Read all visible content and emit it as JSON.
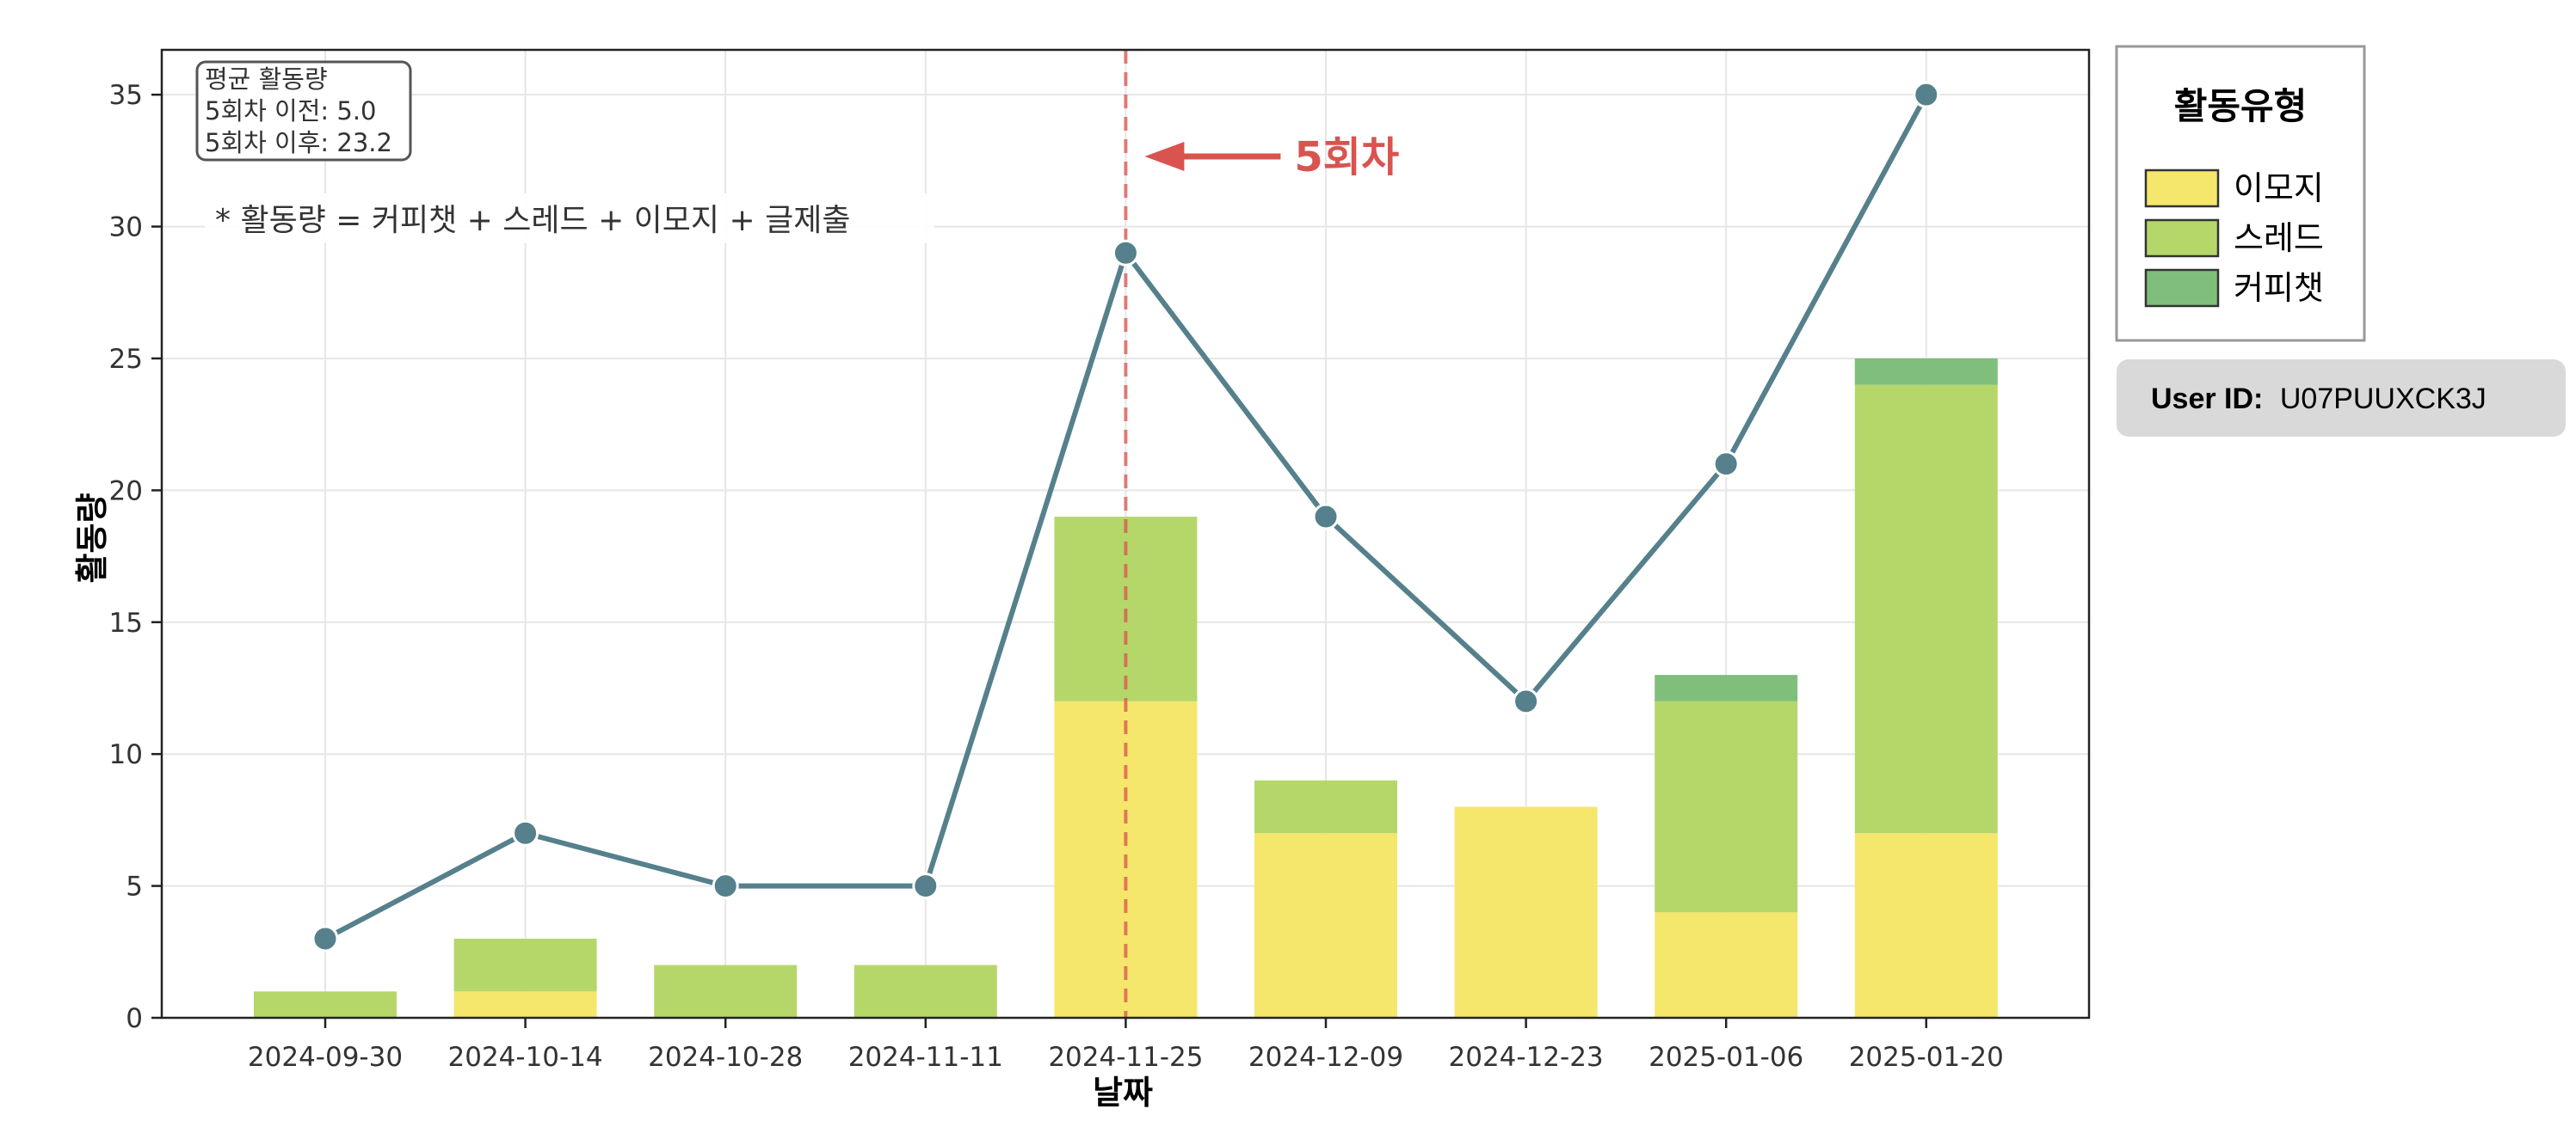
{
  "chart_data": {
    "type": "bar",
    "categories": [
      "2024-09-30",
      "2024-10-14",
      "2024-10-28",
      "2024-11-11",
      "2024-11-25",
      "2024-12-09",
      "2024-12-23",
      "2025-01-06",
      "2025-01-20"
    ],
    "series": [
      {
        "name": "이모지",
        "color": "#f5e66c",
        "values": [
          0,
          1,
          0,
          0,
          12,
          7,
          8,
          4,
          7
        ]
      },
      {
        "name": "스레드",
        "color": "#b5d76a",
        "values": [
          1,
          2,
          2,
          2,
          7,
          2,
          0,
          8,
          17
        ]
      },
      {
        "name": "커피챗",
        "color": "#7fbf7b",
        "values": [
          0,
          0,
          0,
          0,
          0,
          0,
          0,
          1,
          1
        ]
      }
    ],
    "line": {
      "color": "#55808c",
      "values": [
        3,
        7,
        5,
        5,
        29,
        19,
        12,
        21,
        35
      ]
    },
    "xlabel": "날짜",
    "ylabel": "활동량",
    "ylim": [
      0,
      36.7
    ],
    "yticks": [
      0,
      5,
      10,
      15,
      20,
      25,
      30,
      35
    ],
    "grid": true,
    "legend": {
      "title": "활동유형",
      "placement": "outside-right"
    },
    "marker": {
      "category": "2024-11-25",
      "label": "5회차",
      "color": "#d9534f"
    },
    "note": "* 활동량 = 커피챗 + 스레드 + 이모지 + 글제출",
    "stats": {
      "title": "평균 활동량",
      "before": "5회차 이전: 5.0",
      "after": "5회차 이후: 23.2"
    },
    "user_id": {
      "label": "User ID:",
      "value": "U07PUUXCK3J"
    }
  }
}
